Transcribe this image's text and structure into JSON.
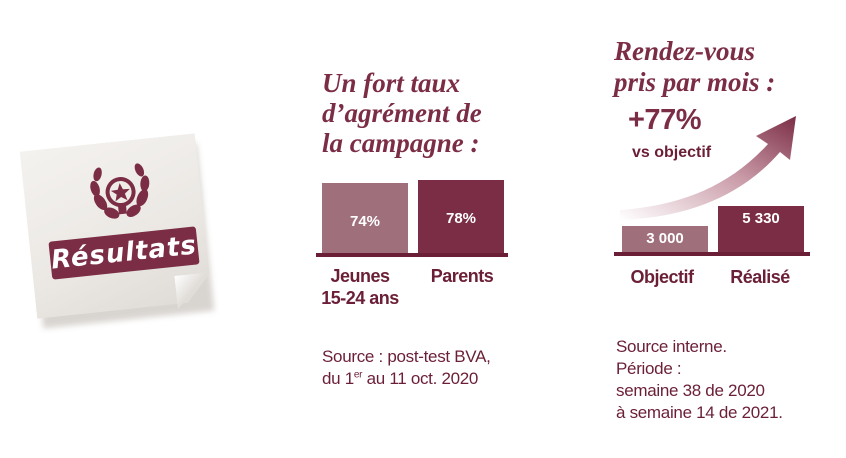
{
  "colors": {
    "burgundy": "#7b2d45",
    "dark_burgundy": "#6b1f36",
    "rose": "#a06f7c",
    "note": "#efece8"
  },
  "note": {
    "icon": "laurel-star-emblem-icon",
    "label": "Résultats"
  },
  "left_block": {
    "heading_lines": [
      "Un fort taux",
      "d’agrément de",
      "la campagne :"
    ],
    "source_lines": [
      "Source : post-test BVA,",
      "du 1",
      "er",
      " au 11 oct. 2020"
    ]
  },
  "right_block": {
    "heading_lines": [
      "Rendez-vous",
      "pris par mois :"
    ],
    "highlight": "+77%",
    "highlight_sub": "vs objectif",
    "arrow_icon": "growth-arrow-icon",
    "source_lines": [
      "Source interne.",
      "Période :",
      "semaine 38 de 2020",
      "à semaine 14 de 2021."
    ]
  },
  "chart_data": [
    {
      "type": "bar",
      "title": "Un fort taux d’agrément de la campagne :",
      "categories": [
        "Jeunes 15-24 ans",
        "Parents"
      ],
      "category_lines": [
        [
          "Jeunes",
          "15-24 ans"
        ],
        [
          "Parents"
        ]
      ],
      "values": [
        74,
        78
      ],
      "value_labels": [
        "74%",
        "78%"
      ],
      "ylim": [
        0,
        100
      ],
      "colors": [
        "#a06f7c",
        "#7b2d45"
      ],
      "grid": false
    },
    {
      "type": "bar",
      "title": "Rendez-vous pris par mois :",
      "categories": [
        "Objectif",
        "Réalisé"
      ],
      "values": [
        3000,
        5330
      ],
      "value_labels": [
        "3 000",
        "5 330"
      ],
      "ylim": [
        0,
        5330
      ],
      "colors": [
        "#a06f7c",
        "#7b2d45"
      ],
      "grid": false
    }
  ]
}
